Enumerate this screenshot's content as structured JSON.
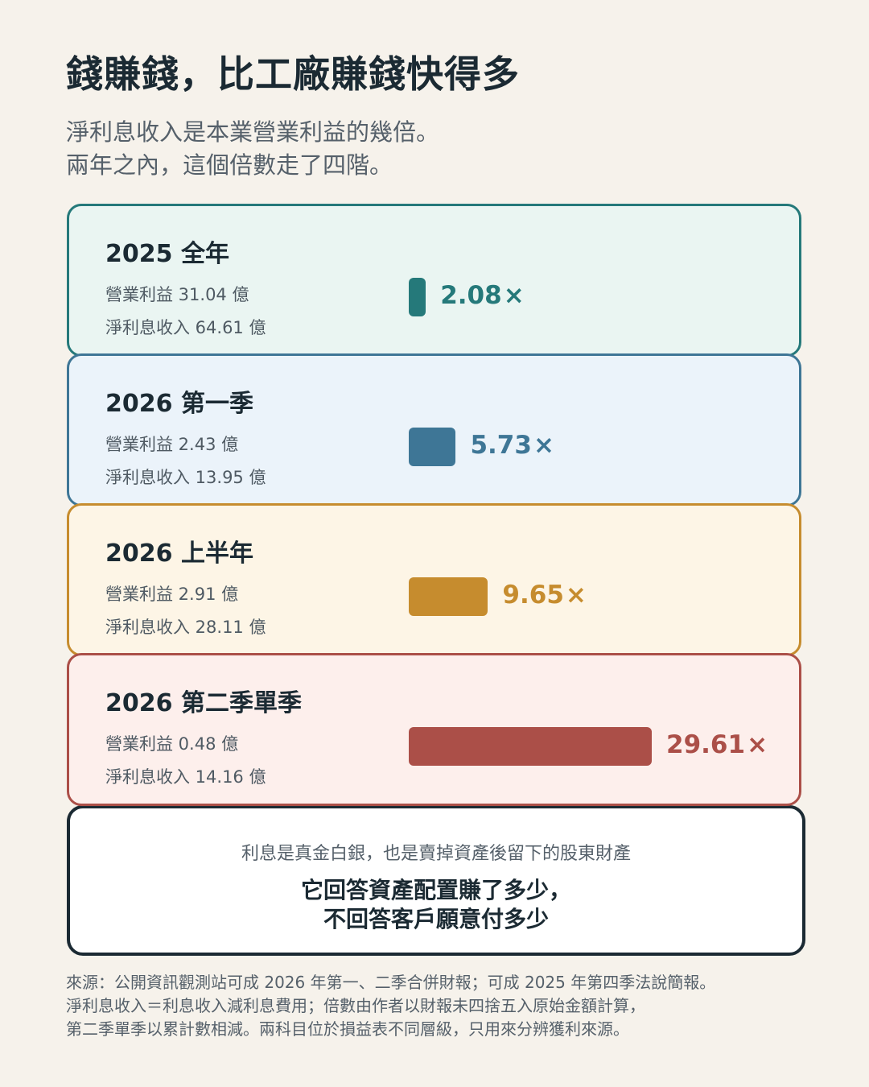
{
  "title": "錢賺錢，比工廠賺錢快得多",
  "subtitle": [
    "淨利息收入是本業營業利益的幾倍。",
    "兩年之內，這個倍數走了四階。"
  ],
  "chart_data": {
    "type": "bar",
    "orientation": "horizontal",
    "categories": [
      "2025 全年",
      "2026 第一季",
      "2026 上半年",
      "2026 第二季單季"
    ],
    "values": [
      2.08,
      5.73,
      9.65,
      29.61
    ],
    "value_suffix": "×",
    "operating_income_label": [
      "營業利益 31.04 億",
      "營業利益 2.43 億",
      "營業利益 2.91 億",
      "營業利益 0.48 億"
    ],
    "net_interest_label": [
      "淨利息收入 64.61 億",
      "淨利息收入 13.95 億",
      "淨利息收入 28.11 億",
      "淨利息收入 14.16 億"
    ],
    "colors": [
      "#25797a",
      "#3e7696",
      "#c68c2e",
      "#ab4f48"
    ],
    "card_backgrounds": [
      "#eaf5f2",
      "#ebf3fa",
      "#fdf5e6",
      "#fdefec"
    ]
  },
  "callout": {
    "sub": "利息是真金白銀，也是賣掉資產後留下的股東財產",
    "main_line1": "它回答資產配置賺了多少，",
    "main_line2": "不回答客戶願意付多少"
  },
  "source": [
    "來源：公開資訊觀測站可成 2026 年第一、二季合併財報；可成 2025 年第四季法說簡報。",
    "淨利息收入＝利息收入減利息費用；倍數由作者以財報未四捨五入原始金額計算，",
    "第二季單季以累計數相減。兩科目位於損益表不同層級，只用來分辨獲利來源。"
  ]
}
